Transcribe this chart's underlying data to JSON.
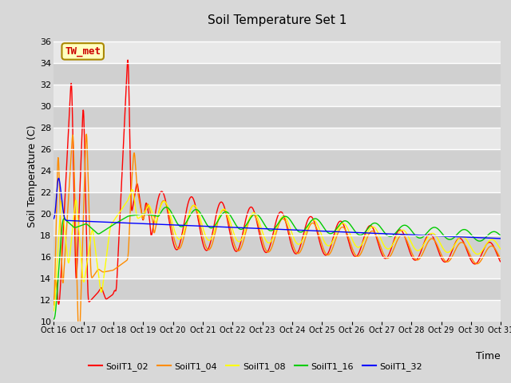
{
  "title": "Soil Temperature Set 1",
  "xlabel": "Time",
  "ylabel": "Soil Temperature (C)",
  "annotation_text": "TW_met",
  "annotation_box_facecolor": "#FFFFC0",
  "annotation_box_edgecolor": "#AA8800",
  "annotation_text_color": "#CC0000",
  "ylim": [
    10,
    37
  ],
  "yticks": [
    10,
    12,
    14,
    16,
    18,
    20,
    22,
    24,
    26,
    28,
    30,
    32,
    34,
    36
  ],
  "bg_color": "#D8D8D8",
  "stripe_light": "#E8E8E8",
  "stripe_dark": "#D0D0D0",
  "grid_color": "#FFFFFF",
  "series_names": [
    "SoilT1_02",
    "SoilT1_04",
    "SoilT1_08",
    "SoilT1_16",
    "SoilT1_32"
  ],
  "series_colors": [
    "#FF0000",
    "#FF8C00",
    "#FFFF00",
    "#00CC00",
    "#0000FF"
  ],
  "xtick_labels": [
    "Oct 16",
    "Oct 17",
    "Oct 18",
    "Oct 19",
    "Oct 20",
    "Oct 21",
    "Oct 22",
    "Oct 23",
    "Oct 24",
    "Oct 25",
    "Oct 26",
    "Oct 27",
    "Oct 28",
    "Oct 29",
    "Oct 30",
    "Oct 31"
  ],
  "n_days": 15,
  "linewidth": 1.0,
  "title_fontsize": 11,
  "axis_label_fontsize": 9,
  "tick_fontsize": 8,
  "legend_fontsize": 8
}
